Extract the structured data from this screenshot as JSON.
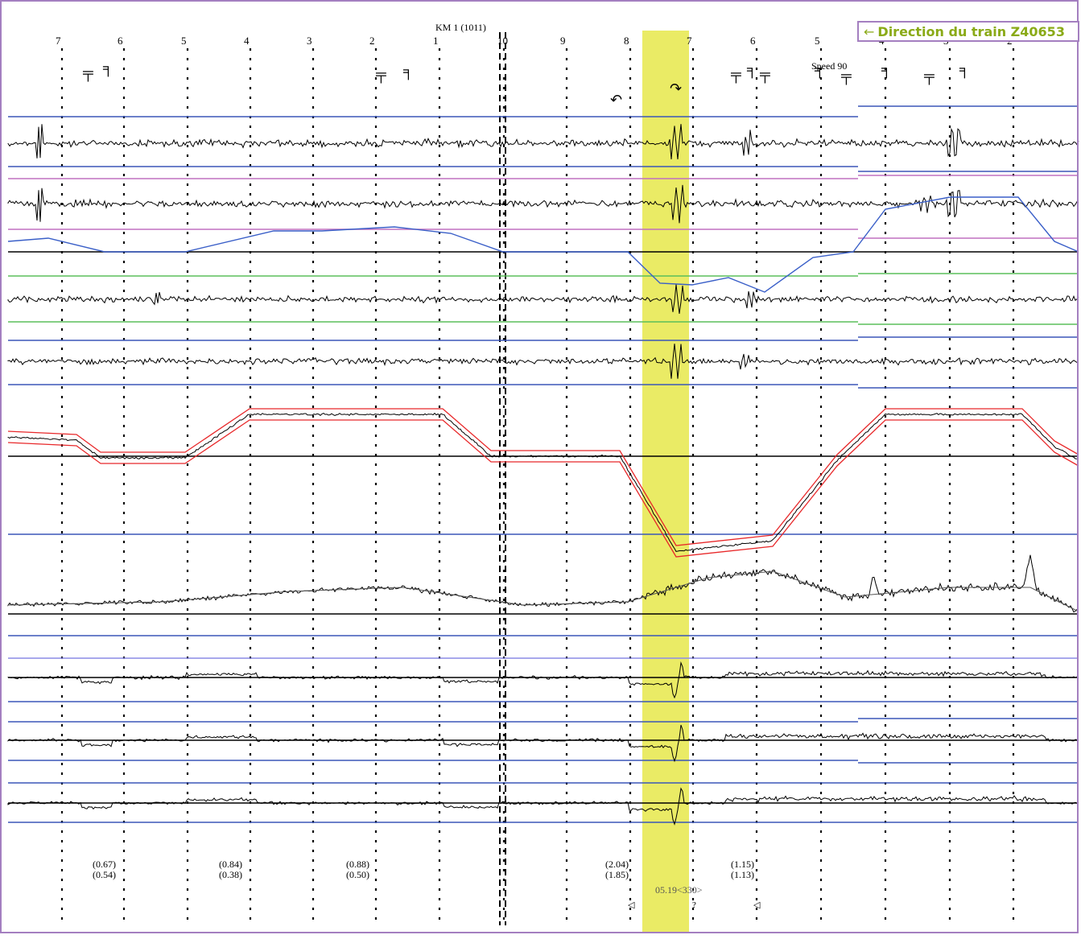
{
  "chart_data": {
    "type": "line",
    "title": "",
    "km_label": "KM 1 (1011)",
    "speed_label": "Speed 90",
    "direction_label": "Direction du train Z40653",
    "post_ticks_top": [
      "7",
      "6",
      "5",
      "4",
      "3",
      "2",
      "1",
      "10",
      "9",
      "8",
      "7",
      "6",
      "5",
      "4",
      "3",
      "2"
    ],
    "highlight_color": "#e6e84a",
    "channel_colors": {
      "trace": "#000000",
      "reference_blue": "#3b57b8",
      "reference_magenta": "#c070c0",
      "reference_green": "#5bbf5b",
      "envelope_red": "#e8282a",
      "trend_blue": "#3a5fc8"
    },
    "defect_values": [
      {
        "top": "(0.67)",
        "bottom": "(0.54)"
      },
      {
        "top": "(0.84)",
        "bottom": "(0.38)"
      },
      {
        "top": "(0.88)",
        "bottom": "(0.50)"
      },
      {
        "top": "(2.04)",
        "bottom": "(1.85)"
      },
      {
        "top": "(1.15)",
        "bottom": "(1.13)"
      }
    ],
    "event_label": "05.19<330>",
    "event_mark": "?",
    "series": [
      {
        "values": [
          0,
          0,
          1,
          0,
          -1,
          0,
          0,
          0,
          0,
          0,
          0,
          0,
          0,
          0,
          0,
          0
        ]
      },
      {
        "values": [
          0,
          0,
          0,
          0,
          0,
          0,
          0,
          0,
          0,
          0,
          0,
          0,
          0,
          0,
          0,
          0
        ]
      },
      {
        "values": [
          0,
          0,
          0,
          0,
          0,
          0,
          0,
          0,
          0,
          0,
          0,
          0,
          0,
          0,
          0,
          0
        ]
      },
      {
        "values": [
          0,
          0,
          0,
          0,
          0,
          0,
          0,
          0,
          0,
          0,
          0,
          0,
          0,
          0,
          0,
          0
        ]
      }
    ]
  }
}
